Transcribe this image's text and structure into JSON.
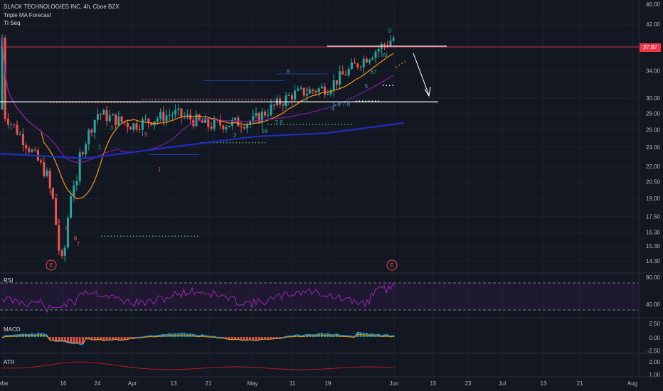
{
  "header": {
    "title": "SLACK TECHNOLOGIES INC, 4h, Cboe BZX",
    "indicator_1": "Triple MA Forecast",
    "indicator_2": "TI Seq"
  },
  "panes": {
    "rsi": "RSI",
    "macd": "MACD",
    "atr": "ATR"
  },
  "current_price": "37.87",
  "colors": {
    "background": "#131722",
    "bull": "#26a69a",
    "bear": "#ef5350",
    "ma_orange": "#f7931a",
    "ma_purple": "#7b1fa2",
    "ma_blue": "#1e2fbf",
    "rsi_line": "#9c27b0",
    "macd_line": "#2196f3",
    "signal_line": "#ff9800",
    "atr_line": "#b71c1c",
    "resistance": "#f23645"
  },
  "chart_data": [
    {
      "type": "candlestick",
      "title": "SLACK TECHNOLOGIES INC, 4h, Cboe BZX",
      "y_scale": "log",
      "y_ticks": [
        "46.00",
        "42.00",
        "38.00",
        "34.00",
        "30.00",
        "28.00",
        "26.00",
        "24.00",
        "22.00",
        "20.50",
        "19.00",
        "17.50",
        "16.30",
        "15.30",
        "14.30"
      ],
      "x_ticks": [
        "Mar",
        "16",
        "24",
        "Apr",
        "13",
        "21",
        "May",
        "11",
        "19",
        "Jun",
        "15",
        "23",
        "Jul",
        "13",
        "21",
        "Aug"
      ],
      "approx_close_path": [
        [
          "Mar",
          28.0
        ],
        [
          "16",
          18.5
        ],
        [
          "24",
          28.0
        ],
        [
          "Apr",
          26.5
        ],
        [
          "13",
          28.0
        ],
        [
          "21",
          26.5
        ],
        [
          "May",
          27.0
        ],
        [
          "11",
          30.5
        ],
        [
          "19",
          31.5
        ],
        [
          "Jun",
          39.5
        ]
      ],
      "annotations": {
        "horizontal_levels": [
          29.5,
          38.0
        ],
        "current_price": 37.87,
        "projection": "arrow from 38.00 down to 30.00",
        "earnings_markers": [
          "E",
          "E"
        ]
      },
      "overlays": [
        "Triple MA Forecast",
        "TI Seq"
      ]
    },
    {
      "type": "line",
      "title": "RSI",
      "y_ticks": [
        "80.00",
        "40.00"
      ],
      "bands": [
        30,
        70
      ]
    },
    {
      "type": "bar",
      "title": "MACD",
      "y_ticks": [
        "2.50",
        "0.00",
        "-2.50"
      ]
    },
    {
      "type": "line",
      "title": "ATR",
      "y_ticks": [
        "2.00",
        "1.00"
      ]
    }
  ]
}
